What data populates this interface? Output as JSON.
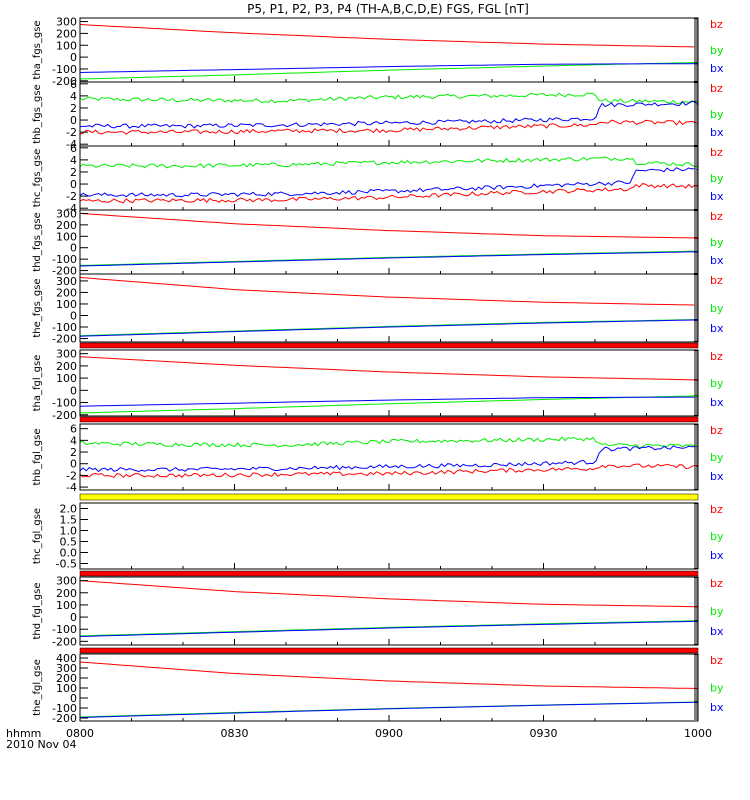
{
  "chart_data": {
    "type": "line",
    "title": "P5, P1, P2, P3, P4 (TH-A,B,C,D,E) FGS, FGL [nT]",
    "x_axis": {
      "range": [
        "08:00",
        "10:00"
      ],
      "ticks": [
        "0800",
        "0830",
        "0900",
        "0930",
        "1000"
      ],
      "label_line1": "hhmm",
      "label_line2": "2010 Nov 04"
    },
    "colors": {
      "bx": "#0000ff",
      "by": "#00ee00",
      "bz": "#ff0000"
    },
    "panels": [
      {
        "name": "tha_fgs_gse",
        "ylim": [
          -210,
          330
        ],
        "yticks": [
          "300",
          "200",
          "100",
          "0",
          "-100",
          "-200"
        ],
        "tick_values": [
          300,
          200,
          100,
          0,
          -100,
          -200
        ],
        "series": [
          {
            "name": "bz",
            "x": [
              0,
              30,
              60,
              90,
              120
            ],
            "values": [
              275,
              205,
              150,
              110,
              85
            ]
          },
          {
            "name": "by",
            "x": [
              0,
              30,
              60,
              90,
              120
            ],
            "values": [
              -185,
              -150,
              -110,
              -75,
              -45
            ]
          },
          {
            "name": "bx",
            "x": [
              0,
              30,
              60,
              90,
              120
            ],
            "values": [
              -130,
              -105,
              -80,
              -60,
              -55
            ]
          }
        ]
      },
      {
        "name": "thb_fgs_gse",
        "ylim": [
          -4.3,
          6.3
        ],
        "yticks": [
          "6",
          "4",
          "2",
          "0",
          "-2",
          "-4"
        ],
        "tick_values": [
          6,
          4,
          2,
          0,
          -2,
          -4
        ],
        "noise": 0.35,
        "series": [
          {
            "name": "by",
            "x": [
              0,
              20,
              40,
              60,
              80,
              100,
              101,
              120
            ],
            "values": [
              3.5,
              3.3,
              3.2,
              3.8,
              4.0,
              4.3,
              3.2,
              3.0
            ]
          },
          {
            "name": "bx",
            "x": [
              0,
              20,
              40,
              60,
              80,
              100,
              101,
              120
            ],
            "values": [
              -1.0,
              -1.0,
              -0.8,
              -0.5,
              -0.2,
              0.3,
              2.5,
              2.8
            ]
          },
          {
            "name": "bz",
            "x": [
              0,
              20,
              40,
              60,
              80,
              100,
              101,
              120
            ],
            "values": [
              -2.0,
              -2.0,
              -1.8,
              -1.7,
              -1.2,
              -0.8,
              -0.3,
              -0.5
            ]
          }
        ]
      },
      {
        "name": "thc_fgs_gse",
        "ylim": [
          -4.3,
          6.3
        ],
        "yticks": [
          "6",
          "4",
          "2",
          "0",
          "-2",
          "-4"
        ],
        "tick_values": [
          6,
          4,
          2,
          0,
          -2,
          -4
        ],
        "noise": 0.35,
        "series": [
          {
            "name": "by",
            "x": [
              0,
              20,
              40,
              60,
              80,
              107,
              108,
              120
            ],
            "values": [
              3.0,
              3.0,
              3.2,
              3.6,
              3.9,
              4.3,
              3.6,
              3.2
            ]
          },
          {
            "name": "bx",
            "x": [
              0,
              20,
              40,
              60,
              80,
              107,
              108,
              120
            ],
            "values": [
              -1.8,
              -1.8,
              -1.6,
              -1.2,
              -0.6,
              0.3,
              2.2,
              2.5
            ]
          },
          {
            "name": "bz",
            "x": [
              0,
              20,
              40,
              60,
              80,
              107,
              108,
              120
            ],
            "values": [
              -2.8,
              -2.7,
              -2.6,
              -2.2,
              -1.5,
              -0.8,
              -0.2,
              -0.4
            ]
          }
        ]
      },
      {
        "name": "thd_fgs_gse",
        "ylim": [
          -230,
          330
        ],
        "yticks": [
          "300",
          "200",
          "100",
          "0",
          "-100",
          "-200"
        ],
        "tick_values": [
          300,
          200,
          100,
          0,
          -100,
          -200
        ],
        "series": [
          {
            "name": "bz",
            "x": [
              0,
              30,
              60,
              90,
              120
            ],
            "values": [
              300,
              210,
              150,
              105,
              85
            ]
          },
          {
            "name": "by",
            "x": [
              0,
              30,
              60,
              90,
              120
            ],
            "values": [
              -155,
              -120,
              -85,
              -55,
              -30
            ]
          },
          {
            "name": "bx",
            "x": [
              0,
              30,
              60,
              90,
              120
            ],
            "values": [
              -160,
              -125,
              -90,
              -60,
              -35
            ]
          }
        ]
      },
      {
        "name": "the_fgs_gse",
        "ylim": [
          -230,
          360
        ],
        "yticks": [
          "300",
          "200",
          "100",
          "0",
          "-100",
          "-200"
        ],
        "tick_values": [
          300,
          200,
          100,
          0,
          -100,
          -200
        ],
        "series": [
          {
            "name": "bz",
            "x": [
              0,
              30,
              60,
              90,
              120
            ],
            "values": [
              330,
              225,
              160,
              115,
              90
            ]
          },
          {
            "name": "by",
            "x": [
              0,
              30,
              60,
              90,
              120
            ],
            "values": [
              -175,
              -135,
              -95,
              -60,
              -35
            ]
          },
          {
            "name": "bx",
            "x": [
              0,
              30,
              60,
              90,
              120
            ],
            "values": [
              -180,
              -140,
              -100,
              -65,
              -38
            ]
          }
        ]
      },
      {
        "name": "tha_fgl_gse",
        "ylim": [
          -210,
          330
        ],
        "yticks": [
          "300",
          "200",
          "100",
          "0",
          "-100",
          "-200"
        ],
        "tick_values": [
          300,
          200,
          100,
          0,
          -100,
          -200
        ],
        "series": [
          {
            "name": "bz",
            "x": [
              0,
              30,
              60,
              90,
              120
            ],
            "values": [
              275,
              205,
              150,
              110,
              85
            ]
          },
          {
            "name": "by",
            "x": [
              0,
              30,
              60,
              90,
              120
            ],
            "values": [
              -185,
              -150,
              -110,
              -75,
              -45
            ]
          },
          {
            "name": "bx",
            "x": [
              0,
              30,
              60,
              90,
              120
            ],
            "values": [
              -130,
              -105,
              -80,
              -60,
              -55
            ]
          }
        ]
      },
      {
        "name": "thb_fgl_gse",
        "ylim": [
          -4.5,
          6.8
        ],
        "yticks": [
          "6",
          "4",
          "2",
          "0",
          "-2",
          "-4"
        ],
        "tick_values": [
          6,
          4,
          2,
          0,
          -2,
          -4
        ],
        "noise": 0.35,
        "series": [
          {
            "name": "by",
            "x": [
              0,
              20,
              40,
              60,
              80,
              100,
              101,
              120
            ],
            "values": [
              3.5,
              3.3,
              3.2,
              3.8,
              4.0,
              4.3,
              3.2,
              3.0
            ]
          },
          {
            "name": "bx",
            "x": [
              0,
              20,
              40,
              60,
              80,
              100,
              101,
              120
            ],
            "values": [
              -1.0,
              -1.0,
              -0.8,
              -0.5,
              -0.2,
              0.3,
              2.5,
              2.8
            ]
          },
          {
            "name": "bz",
            "x": [
              0,
              20,
              40,
              60,
              80,
              100,
              101,
              120
            ],
            "values": [
              -2.0,
              -2.0,
              -1.8,
              -1.7,
              -1.2,
              -0.8,
              -0.3,
              -0.5
            ]
          }
        ]
      },
      {
        "name": "thc_fgl_gse",
        "ylim": [
          -0.75,
          2.25
        ],
        "yticks": [
          "2.0",
          "1.5",
          "1.0",
          "0.5",
          "0.0",
          "-0.5"
        ],
        "tick_values": [
          2.0,
          1.5,
          1.0,
          0.5,
          0.0,
          -0.5
        ],
        "series": []
      },
      {
        "name": "thd_fgl_gse",
        "ylim": [
          -230,
          330
        ],
        "yticks": [
          "300",
          "200",
          "100",
          "0",
          "-100",
          "-200"
        ],
        "tick_values": [
          300,
          200,
          100,
          0,
          -100,
          -200
        ],
        "series": [
          {
            "name": "bz",
            "x": [
              0,
              30,
              60,
              90,
              120
            ],
            "values": [
              300,
              210,
              150,
              105,
              85
            ]
          },
          {
            "name": "by",
            "x": [
              0,
              30,
              60,
              90,
              120
            ],
            "values": [
              -155,
              -120,
              -85,
              -55,
              -30
            ]
          },
          {
            "name": "bx",
            "x": [
              0,
              30,
              60,
              90,
              120
            ],
            "values": [
              -160,
              -125,
              -90,
              -60,
              -35
            ]
          }
        ]
      },
      {
        "name": "the_fgl_gse",
        "ylim": [
          -230,
          440
        ],
        "yticks": [
          "400",
          "300",
          "200",
          "100",
          "0",
          "-100",
          "-200"
        ],
        "tick_values": [
          400,
          300,
          200,
          100,
          0,
          -100,
          -200
        ],
        "series": [
          {
            "name": "bz",
            "x": [
              0,
              30,
              60,
              90,
              120
            ],
            "values": [
              360,
              245,
              170,
              120,
              95
            ]
          },
          {
            "name": "by",
            "x": [
              0,
              30,
              60,
              90,
              120
            ],
            "values": [
              -190,
              -145,
              -105,
              -70,
              -40
            ]
          },
          {
            "name": "bx",
            "x": [
              0,
              30,
              60,
              90,
              120
            ],
            "values": [
              -195,
              -150,
              -108,
              -72,
              -42
            ]
          }
        ]
      }
    ],
    "status_bars": [
      {
        "after_panel": 4,
        "color": "#ff0000"
      },
      {
        "after_panel": 5,
        "color": "#ff0000"
      },
      {
        "after_panel": 6,
        "color": "#ffff00"
      },
      {
        "after_panel": 7,
        "color": "#ff0000"
      },
      {
        "after_panel": 8,
        "color": "#ff0000"
      }
    ]
  }
}
